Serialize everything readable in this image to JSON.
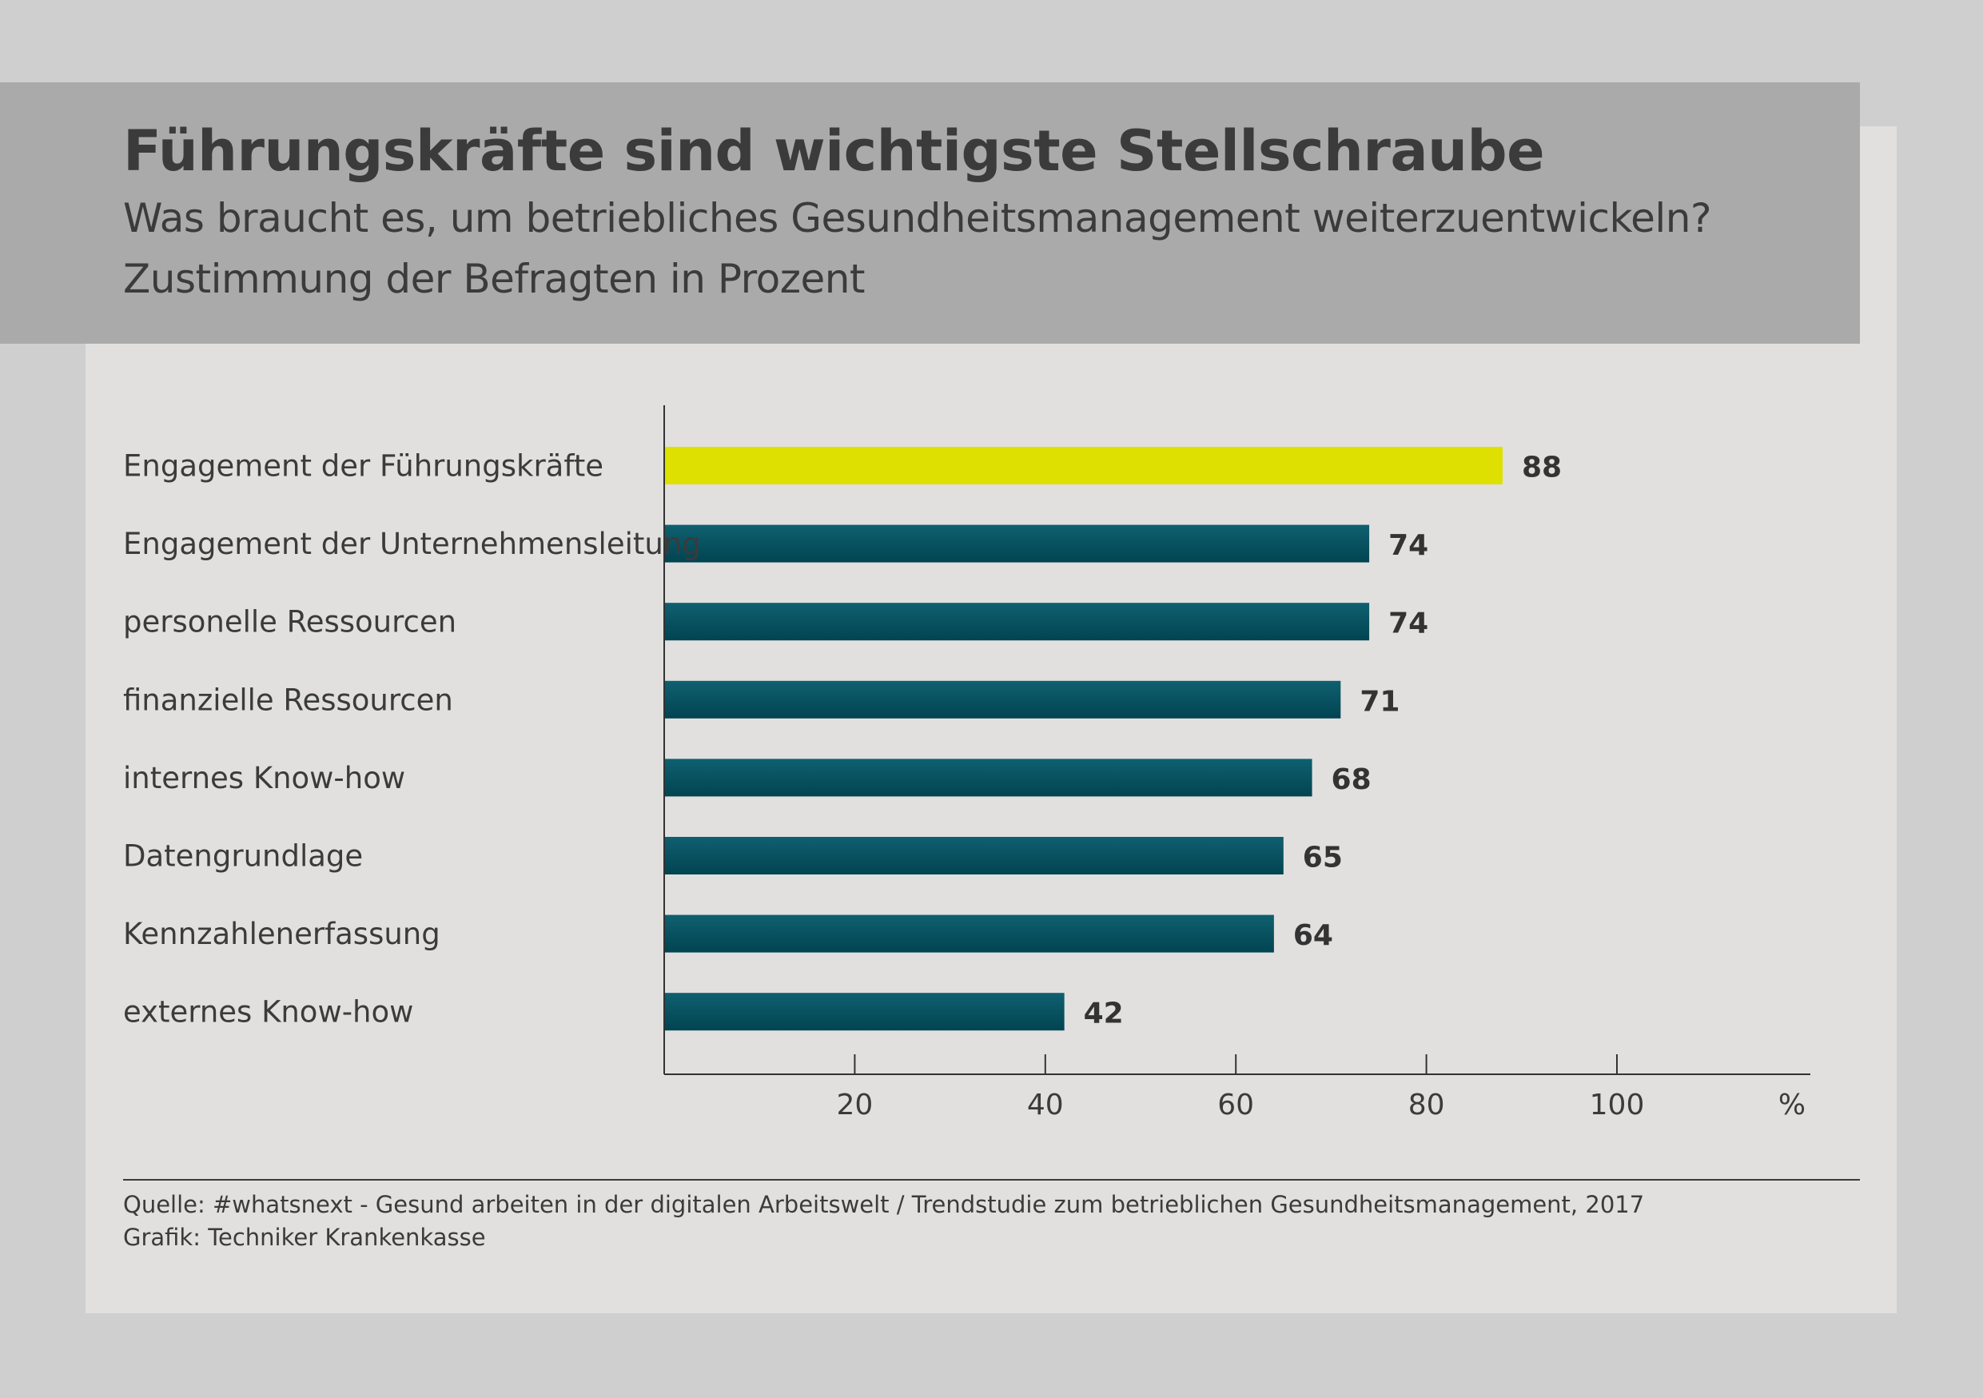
{
  "header": {
    "title": "Führungskräfte sind wichtigste Stellschraube",
    "subtitle_line1": "Was braucht es, um betriebliches Gesundheitsmanagement weiterzuentwickeln?",
    "subtitle_line2": "Zustimmung der Befragten in Prozent"
  },
  "chart_data": {
    "type": "bar",
    "orientation": "horizontal",
    "categories": [
      "Engagement der Führungskräfte",
      "Engagement der Unternehmensleitung",
      "personelle Ressourcen",
      "finanzielle Ressourcen",
      "internes Know-how",
      "Datengrundlage",
      "Kennzahlenerfassung",
      "externes Know-how"
    ],
    "values": [
      88,
      74,
      74,
      71,
      68,
      65,
      64,
      42
    ],
    "highlight_index": 0,
    "colors": {
      "highlight": "#dde000",
      "bar": "#03505f",
      "axis": "#333333"
    },
    "xlim": [
      0,
      120
    ],
    "ticks": [
      20,
      40,
      60,
      80,
      100
    ],
    "unit_label": "%",
    "grid": false
  },
  "footer": {
    "source": "Quelle: #whatsnext - Gesund arbeiten in der digitalen Arbeitswelt / Trendstudie zum betrieblichen Gesundheitsmanagement, 2017",
    "credit": "Grafik: Techniker Krankenkasse"
  }
}
